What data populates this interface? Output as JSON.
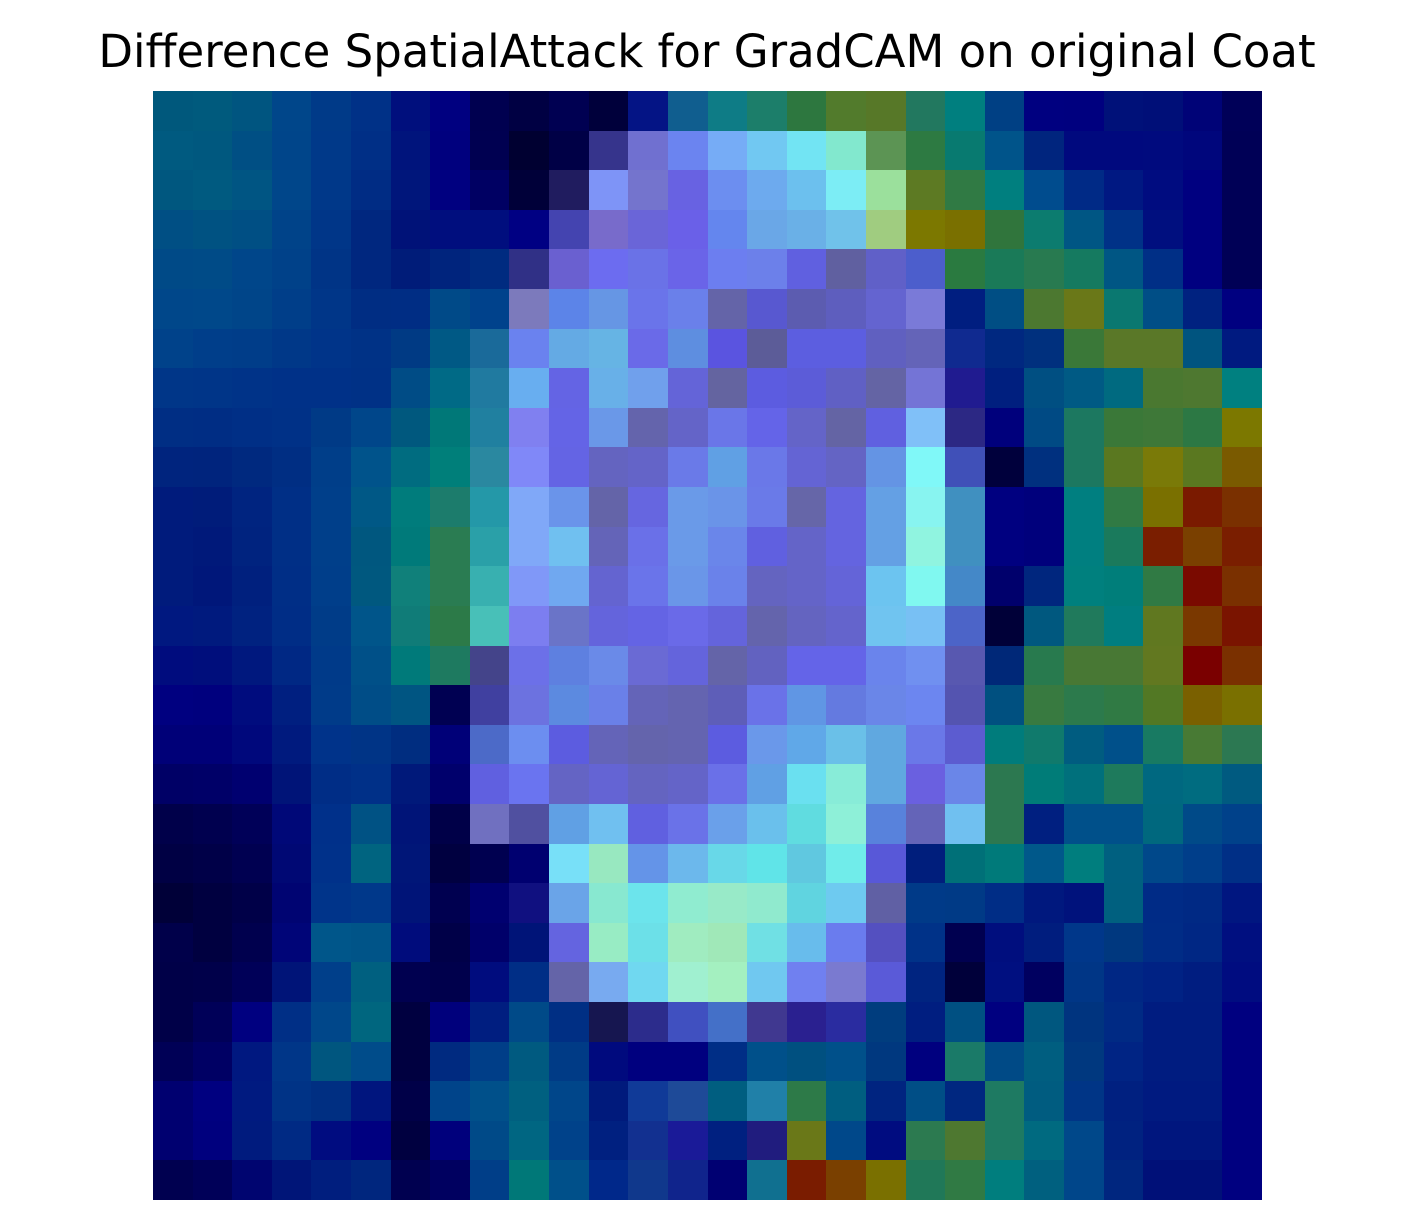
{
  "chart_data": {
    "type": "heatmap",
    "title": "Difference SpatialAttack for GradCAM on original Coat",
    "xlabel": "",
    "ylabel": "",
    "axes_visible": false,
    "grid": false,
    "legend": "none",
    "rows": 28,
    "cols": 28,
    "palette": "#00004a #000080 #002080 #005080 #006680 #007878 #2a8060 #506b28 #80700a #7a2a00 #860000 #201870 #4040b0 #6060e0 #7080f0 #70a8f0 #70c8f0 #70f0f0 #90f0d8 #a0e8b8 #606098 #2878a0",
    "colors": [
      "#00587c #005a7d #005580 #00468a #003a88 #003187 #000f7d #000080 #000050 #000043 #000052 #00003b #041485 #105e8f #0e7c86 #1c7e6a #2d773f #527b2c #577828 #22785f #007f7f #004084 #000080 #00007f #001179 #000f78 #000377 #000058",
      "#005a80 #00587f #004f84 #00458a #003989 #002f86 #00147c #00007e #000051 #000031 #000046 #36348c #7070d0 #6b84f0 #76acf6 #71c8f2 #72e4f3 #82e8ce #5c9454 #2d7a42 #087a70 #00548a #00257e #00097e #00097e #000a7e #00067c #000056",
      "#00577f #005a80 #005583 #00468a #003889 #002c84 #00167b #000080 #000063 #000039 #201c5f #7e94f7 #7474cd #6862e2 #6c8ef0 #6daaee #6cc0ee #7cedf5 #9be09c #5d7a23 #307a44 #007f7f #004c8e #002a86 #001882 #000c80 #000080 #000056",
      "#004f84 #005282 #004f84 #004389 #003688 #00277f #001278 #000e7e #000e7e #000083 #4444b0 #786bcb #6a65d8 #6a60e8 #6486ee #6aa7e7 #6ab0e7 #70c2ea #a0cc80 #7c7800 #7a7000 #30753c #0c7c6f #005684 #003287 #000f7f #000080 #000056",
      "#004a87 #004b87 #00468a #004189 #003486 #00277f #001c79 #00247d #002b80 #303086 #6a60d0 #6c6cf0 #6a72e7 #6a64e8 #6c7ef0 #6c80ea #6060e0 #6060a0 #6060c8 #4c5ecc #2a7a40 #1a7a58 #287a50 #157a60 #005684 #002f86 #000080 #000056",
      "#00478a #00488a #004589 #003e89 #003688 #002d83 #002d84 #004a88 #00428c #7c7abc #5c84e8 #6696e4 #6a74ea #6a80ea #6464a8 #5858d0 #5c5cb0 #5e5ebe #6464d0 #7a7ad8 #001e80 #004e84 #4c7830 #6a7818 #0a7870 #004e86 #002280 #000080",
      "#00428a #003e8a #003d89 #003888 #003489 #003286 #003a84 #005985 #1a6a9a #6a82ef #64aae4 #66b4e4 #6a6ae8 #5e8ee0 #5a54e0 #5c5c98 #5c5ee0 #5c5ee0 #6060c0 #6464b8 #102a90 #002880 #00307e #3a7838 #5a7828 #5a7828 #00547f #001a80",
      "#003688 #003588 #003388 #003188 #003188 #003186 #004c86 #006a86 #207aa0 #68aef0 #6464e4 #68b0e8 #70a0ec #6464d8 #6464a0 #5c5ce0 #5c5cd8 #6060c4 #6464a4 #7474d6 #201b90 #001f7f #004f82 #005a84 #006a80 #4a7830 #4e7830 #008080",
      "#002e84 #002d84 #002f86 #003187 #003a86 #00468a #00587e #007878 #2080a0 #8080f0 #6464e6 #6a98e8 #6464ac #6464c8 #6a76e8 #6464e8 #6464c8 #6464a4 #6060e0 #80c0f8 #2c2884 #00007c #004a84 #1c7860 #3a7838 #3e7838 #2c7844 #7c7800",
      "#00247e #00247d #00297f #002e83 #003e89 #00538b #006c80 #007f7a #2a88a0 #8088f8 #6464e4 #6464c0 #6464c8 #6a7ae8 #60a0e4 #6a78e8 #6464d4 #6464c4 #6494e4 #80f8f8 #4050b8 #00003c #00307f #1c7860 #5a7820 #7a7a08 #5a7820 #7a5a00",
      "#001b7c #001c7a #002480 #002f86 #003f8a #005886 #007c7c #1c7c6c #2498a8 #80a8f8 #6a94ea #6464a8 #6666e0 #6a9ae8 #6a94e8 #6a7ae8 #6666a8 #6464e0 #64a0e4 #88f4f0 #4090c0 #000080 #00007c #007f80 #307a44 #7a7000 #7a1a00 #7a3000",
      "#001b7c #00197a #00237f #002f86 #003f8a #00577f #007a7a #2a7c52 #2aa0a8 #80a8f8 #70c0f0 #6464b8 #6a70e8 #6a9ae8 #6a86ea #6060e0 #6464c8 #6464e0 #64a0e4 #90f4e0 #4090c0 #000080 #00007c #007f80 #1a7a5c #7a1e00 #7a4000 #7a1e00",
      "#001b7c #00177a #00207e #002e86 #003e8a #00587f #10807a #2a7c52 #38b0b0 #8098f8 #70a8f0 #6464d0 #6a74ea #6a96e8 #6a82ea #6464c0 #6464c8 #6464d8 #6cc4f0 #80f8f0 #4488c8 #00006c #00267e #00807e #007e7a #307a44 #7a0a00 #7a3000",
      "#001880 #001a7e #002280 #002d86 #003c88 #00558a #107c78 #2c7a48 #48c0b8 #7c7ef0 #6a74c8 #6464dc #6464e4 #6a6ae8 #6464dc #6464ac #6464c0 #6464cc #70c4f0 #78c0f4 #4c64c8 #000038 #00587f #207a5c #007e80 #607820 #7a3800 #7a1400",
      "#000c7e #000e7c #00187e #002884 #003a89 #005088 #007a7a #1e7a60 #44448a #6c70e8 #5e80e0 #6a8ae8 #6a6ad4 #6464dc #6464a8 #6262c0 #6464e8 #6464e8 #6a84ec #7090f0 #5858b0 #002878 #287a4e #487834 #487834 #627820 #7a0000 #7a3000",
      "#000080 #00007e #000c7e #001f80 #003b89 #004d87 #005582 #000052 #4040a0 #6c72e0 #5c8ae0 #6a80e8 #6464b8 #6464b0 #5e5eb8 #6a72e8 #6096e4 #647ae0 #6a86e8 #6c86f0 #5454b0 #005080 #387a40 #2c7a4c #307a44 #527824 #7a6000 #7a7000",
      "#000078 #000078 #00087c #001a7e #00338a #003486 #002d80 #000078 #4c6ac8 #6c8ef0 #5c5ce0 #6464b8 #6464ac #6464b0 #5c5ce0 #6a98ea #60a8e8 #6ac0e8 #60a8e0 #6a78e8 #5c5cd0 #007c7c #107a6c #005c80 #00508a #187a62 #487a34 #2c7852",
      "#000066 #000068 #000070 #001478 #002d86 #003088 #00197a #00006c #6060e0 #6a74f0 #6464c4 #6464d4 #6464c0 #6464c8 #6a70e8 #60a0e4 #6ae0f0 #88ecd8 #60a8e0 #6a60e0 #6a86e8 #2c7850 #007c78 #00707c #1e7a5c #006880 #006c80 #005a80",
      "#00004a #00004f #000058 #000878 #00308a #005284 #001478 #000048 #7070c0 #5050a0 #60a0e4 #70c0f0 #6060e0 #6a72e8 #6aa0ea #6ac0ec #60dce0 #8ef0d8 #5882dc #6464b8 #70c0f0 #2c7850 #001f80 #00508a #00508a #00687e #004a88 #00418a",
      "#000044 #000048 #000051 #000874 #00318a #006480 #001678 #000040 #000050 #000070 #78e0f8 #98e8c0 #6494e8 #6cb8ec #68d8e8 #60e4e8 #60c8e0 #70ecea #5858d8 #001e7c #007078 #007a7a #00588a #007e7e #006080 #00488a #003e8a #002f86",
      "#000038 #000040 #000048 #000472 #00348a #00388a #001478 #000050 #000070 #101080 #6aa4e8 #88e8d0 #6ce4ec #90ecd0 #98eac8 #90eace #60d4e0 #6ecaf0 #6060a4 #003a88 #003a86 #002d86 #00187e #00127c #00607f #002b86 #002984 #001680",
      "#00004a #000040 #00004e #000578 #00568a #005488 #000c7c #000048 #00006a #001478 #6464e0 #98ecc4 #6ce0e8 #a0ecc0 #a0e8b8 #70e0e4 #68bcec #6a7cee #5450c0 #003288 #000050 #000e7e #001d7e #00378a #00387f #002c86 #002784 #000f80",
      "#000048 #00004a #000058 #001478 #003f8a #006080 #000050 #00004c #000c7e #002e86 #6464a8 #78aaf0 #70d8f0 #a0f0d0 #a4f0c0 #70c8f0 #7080f0 #7a7ad0 #5a5ad8 #002480 #00003a #000f80 #000060 #003686 #002784 #002284 #001d80 #000c80",
      "#000048 #000058 #000080 #002f86 #00478a #00667f #000040 #00007c #001e80 #004a88 #002f84 #161650 #2c2c8c #4050c0 #4470c8 #403890 #2a2090 #2a2ca0 #003d7e #001e80 #005082 #000080 #00577f #00347f #002a84 #001c80 #001c80 #000080",
      "#000056 #000064 #001880 #003688 #00567f #004c8a #000040 #002a80 #003e88 #005a80 #003b86 #000a7e #00007f #00007f #002e86 #00508a #005080 #00508a #00387f #00007f #1a7a68 #004a86 #005e80 #00387f #002484 #001c80 #001c80 #000080",
      "#000070 #000080 #001a80 #003386 #002f82 #00157e #000048 #00448a #00508a #006080 #00468a #001a7c #103a98 #1e4a98 #005e80 #2080a8 #2d7a48 #005e80 #002480 #004e86 #002780 #1e7a62 #005c80 #003586 #002080 #001a80 #001a80 #000080",
      "#000070 #00007e #001b7e #002a84 #000c80 #000080 #000040 #00007c #004a88 #006682 #00428a #002080 #123090 #1a1a98 #002080 #201c7e #6a7818 #00488a #000c80 #2c7a50 #4e7830 #1e7a62 #006a80 #00488a #002280 #00167e #00167e #000080",
      "#000050 #000058 #000570 #001578 #001e7e #00267e #000050 #000060 #003e88 #007878 #00508a #00288a #10388c #10248c #000072 #107090 #7a1c00 #7a4000 #7a7000 #207858 #307a44 #007e7e #00607f #00468a #00267f #001078 #001078 #000080"
    ]
  }
}
